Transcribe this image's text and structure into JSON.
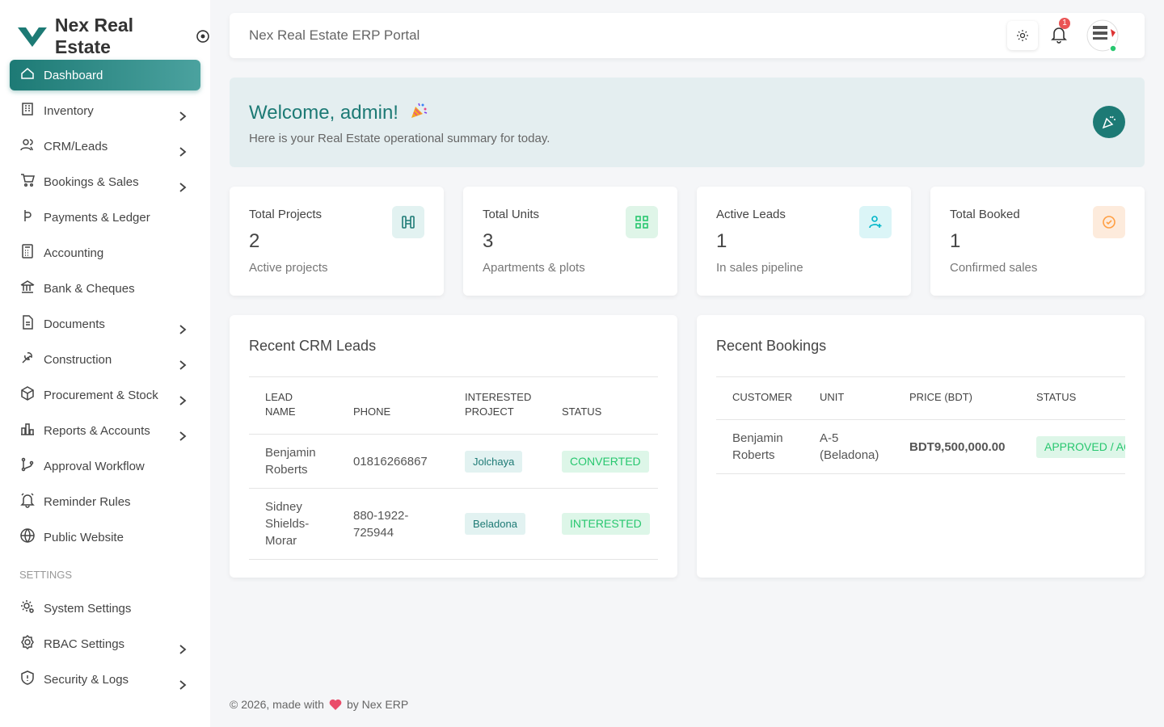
{
  "brand": "Nex Real Estate",
  "nav": [
    {
      "label": "Dashboard",
      "active": true,
      "expandable": false
    },
    {
      "label": "Inventory",
      "active": false,
      "expandable": true
    },
    {
      "label": "CRM/Leads",
      "active": false,
      "expandable": true
    },
    {
      "label": "Bookings & Sales",
      "active": false,
      "expandable": true
    },
    {
      "label": "Payments & Ledger",
      "active": false,
      "expandable": false
    },
    {
      "label": "Accounting",
      "active": false,
      "expandable": false
    },
    {
      "label": "Bank & Cheques",
      "active": false,
      "expandable": false
    },
    {
      "label": "Documents",
      "active": false,
      "expandable": true
    },
    {
      "label": "Construction",
      "active": false,
      "expandable": true
    },
    {
      "label": "Procurement & Stock",
      "active": false,
      "expandable": true
    },
    {
      "label": "Reports & Accounts",
      "active": false,
      "expandable": true
    },
    {
      "label": "Approval Workflow",
      "active": false,
      "expandable": false
    },
    {
      "label": "Reminder Rules",
      "active": false,
      "expandable": false
    },
    {
      "label": "Public Website",
      "active": false,
      "expandable": false
    }
  ],
  "settings_heading": "SETTINGS",
  "settings_nav": [
    {
      "label": "System Settings",
      "active": false,
      "expandable": false
    },
    {
      "label": "RBAC Settings",
      "active": false,
      "expandable": true
    },
    {
      "label": "Security & Logs",
      "active": false,
      "expandable": true
    }
  ],
  "header": {
    "title": "Nex Real Estate ERP Portal",
    "notifications": 1
  },
  "welcome": {
    "title": "Welcome, admin!",
    "subtitle": "Here is your Real Estate operational summary for today."
  },
  "stats": [
    {
      "label": "Total Projects",
      "value": 2,
      "caption": "Active projects"
    },
    {
      "label": "Total Units",
      "value": 3,
      "caption": "Apartments & plots"
    },
    {
      "label": "Active Leads",
      "value": 1,
      "caption": "In sales pipeline"
    },
    {
      "label": "Total Booked",
      "value": 1,
      "caption": "Confirmed sales"
    }
  ],
  "leads": {
    "title": "Recent CRM Leads",
    "columns": [
      "LEAD NAME",
      "PHONE",
      "INTERESTED PROJECT",
      "STATUS"
    ],
    "rows": [
      [
        "Benjamin Roberts",
        "01816266867",
        "Jolchaya",
        "CONVERTED"
      ],
      [
        "Sidney Shields-Morar",
        "880-1922-725944",
        "Beladona",
        "INTERESTED"
      ]
    ]
  },
  "bookings": {
    "title": "Recent Bookings",
    "columns": [
      "CUSTOMER",
      "UNIT",
      "PRICE (BDT)",
      "STATUS"
    ],
    "rows": [
      [
        "Benjamin Roberts",
        "A-5 (Beladona)",
        "BDT9,500,000.00",
        "APPROVED / ACTIVE"
      ]
    ]
  },
  "footer": {
    "before": "© 2026, made with",
    "after": "by Nex ERP"
  }
}
